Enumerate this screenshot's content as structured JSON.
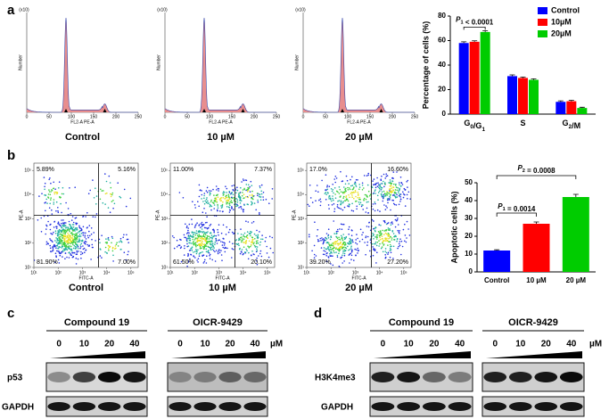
{
  "panel_labels": [
    "a",
    "b",
    "c",
    "d"
  ],
  "histograms": {
    "captions": [
      "Control",
      "10 µM",
      "20 µM"
    ],
    "x_label": "FL2-A PE-A",
    "y_label": "Number",
    "y_unit": "(x10)",
    "xlim": [
      0,
      250
    ],
    "xticks": [
      0,
      50,
      100,
      150,
      200,
      250
    ]
  },
  "flow": {
    "captions": [
      "Control",
      "10 µM",
      "20 µM"
    ],
    "x_label": "FITC-A",
    "y_label": "PE-A",
    "log": true,
    "lim": [
      10,
      200000
    ],
    "ticks": [
      {
        "value": 10,
        "label": "10¹"
      },
      {
        "value": 100,
        "label": "10²"
      },
      {
        "value": 1000,
        "label": "10³"
      },
      {
        "value": 10000,
        "label": "10⁴"
      },
      {
        "value": 100000,
        "label": "10⁵"
      }
    ],
    "quadrants": [
      [
        "5.89%",
        "5.16%",
        "81.90%",
        "7.00%"
      ],
      [
        "11.00%",
        "7.37%",
        "61.50%",
        "20.10%"
      ],
      [
        "17.0%",
        "16.60%",
        "39.20%",
        "27.20%"
      ]
    ]
  },
  "chart_data": [
    {
      "type": "bar",
      "y_label": "Percentage of cells (%)",
      "categories": [
        "G0/G1",
        "S",
        "G2/M"
      ],
      "series": [
        {
          "name": "Control",
          "color": "#0000ff",
          "values": [
            58,
            31,
            10
          ],
          "errors": [
            1,
            1,
            0.8
          ]
        },
        {
          "name": "10µM",
          "color": "#ff0000",
          "values": [
            59,
            29.5,
            10.5
          ],
          "errors": [
            0.8,
            0.8,
            0.8
          ]
        },
        {
          "name": "20µM",
          "color": "#00cc00",
          "values": [
            67,
            28,
            5
          ],
          "errors": [
            1,
            0.8,
            0.6
          ]
        }
      ],
      "ylim": [
        0,
        80
      ],
      "yticks": [
        0,
        20,
        40,
        60,
        80
      ],
      "legend": "top-right",
      "annotations": [
        "P1 < 0.0001"
      ]
    },
    {
      "type": "bar",
      "y_label": "Apoptotic cells (%)",
      "categories": [
        "Control",
        "10 µM",
        "20 µM"
      ],
      "values": [
        12,
        27,
        42
      ],
      "errors": [
        0.4,
        1,
        1.5
      ],
      "colors": [
        "#0000ff",
        "#ff0000",
        "#00cc00"
      ],
      "ylim": [
        0,
        50
      ],
      "yticks": [
        0,
        10,
        20,
        30,
        40,
        50
      ],
      "annotations": [
        "P1 = 0.0014",
        "P2 = 0.0008"
      ]
    }
  ],
  "western_blots": [
    {
      "groups": [
        {
          "name": "Compound 19",
          "doses": [
            0,
            10,
            20,
            40
          ]
        },
        {
          "name": "OICR-9429",
          "doses": [
            0,
            10,
            20,
            40
          ]
        }
      ],
      "unit": "µM",
      "proteins": [
        "p53",
        "GAPDH"
      ]
    },
    {
      "groups": [
        {
          "name": "Compound 19",
          "doses": [
            0,
            10,
            20,
            40
          ]
        },
        {
          "name": "OICR-9429",
          "doses": [
            0,
            10,
            20,
            40
          ]
        }
      ],
      "unit": "µM",
      "proteins": [
        "H3K4me3",
        "GAPDH"
      ]
    }
  ]
}
